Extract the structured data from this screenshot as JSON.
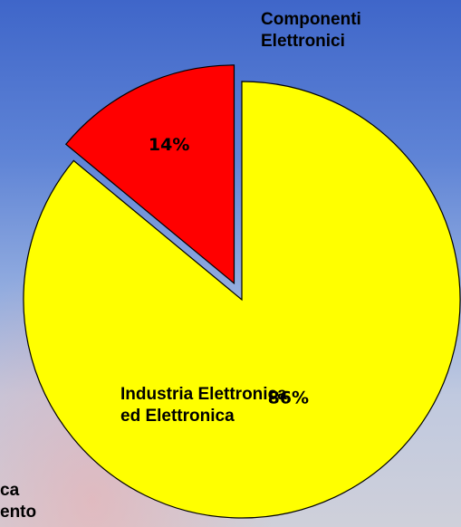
{
  "chart_data": {
    "type": "pie",
    "slices": [
      {
        "label": "Componenti Elettronici",
        "value": 14,
        "value_label": "14%",
        "color": "#ff0000",
        "exploded": true
      },
      {
        "label": "Industria Elettronica ed Elettronica",
        "value": 86,
        "value_label": "86%",
        "color": "#ffff00",
        "exploded": false
      }
    ],
    "category_labels": {
      "componenti": [
        "Componenti",
        "Elettronici"
      ],
      "industria": [
        "Industria Elettronica",
        "ed Elettronica"
      ],
      "cut_off": [
        "ca",
        "ento"
      ]
    },
    "colors": {
      "slice_stroke": "#000000",
      "background_top": "#3f66c9",
      "background_bottom": "#cfd0da"
    }
  }
}
